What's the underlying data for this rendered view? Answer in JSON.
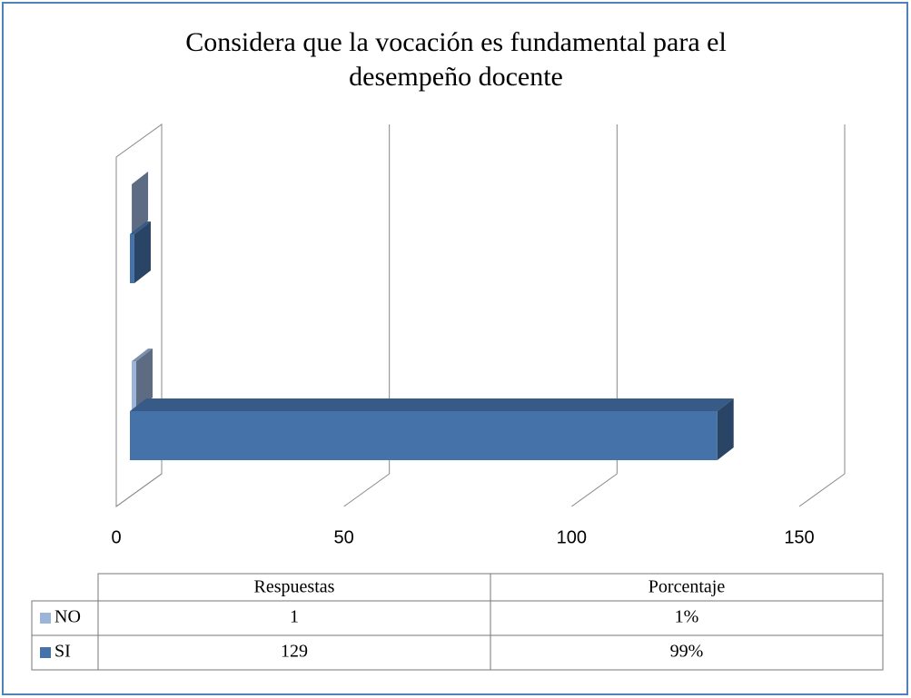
{
  "chart_data": {
    "type": "bar3d_horizontal",
    "title": "Considera que la vocación es fundamental para el desempeño docente",
    "categories": [
      "Respuestas",
      "Porcentaje"
    ],
    "series": [
      {
        "name": "NO",
        "color": "#9bb4d8",
        "values": [
          1,
          0.01
        ],
        "value_labels": [
          "1",
          "1%"
        ]
      },
      {
        "name": "SI",
        "color": "#4572a8",
        "values": [
          129,
          0.99
        ],
        "value_labels": [
          "129",
          "99%"
        ]
      }
    ],
    "xlim": [
      0,
      150
    ],
    "xticks": [
      0,
      50,
      100,
      150
    ],
    "grid": true,
    "data_table": true
  }
}
